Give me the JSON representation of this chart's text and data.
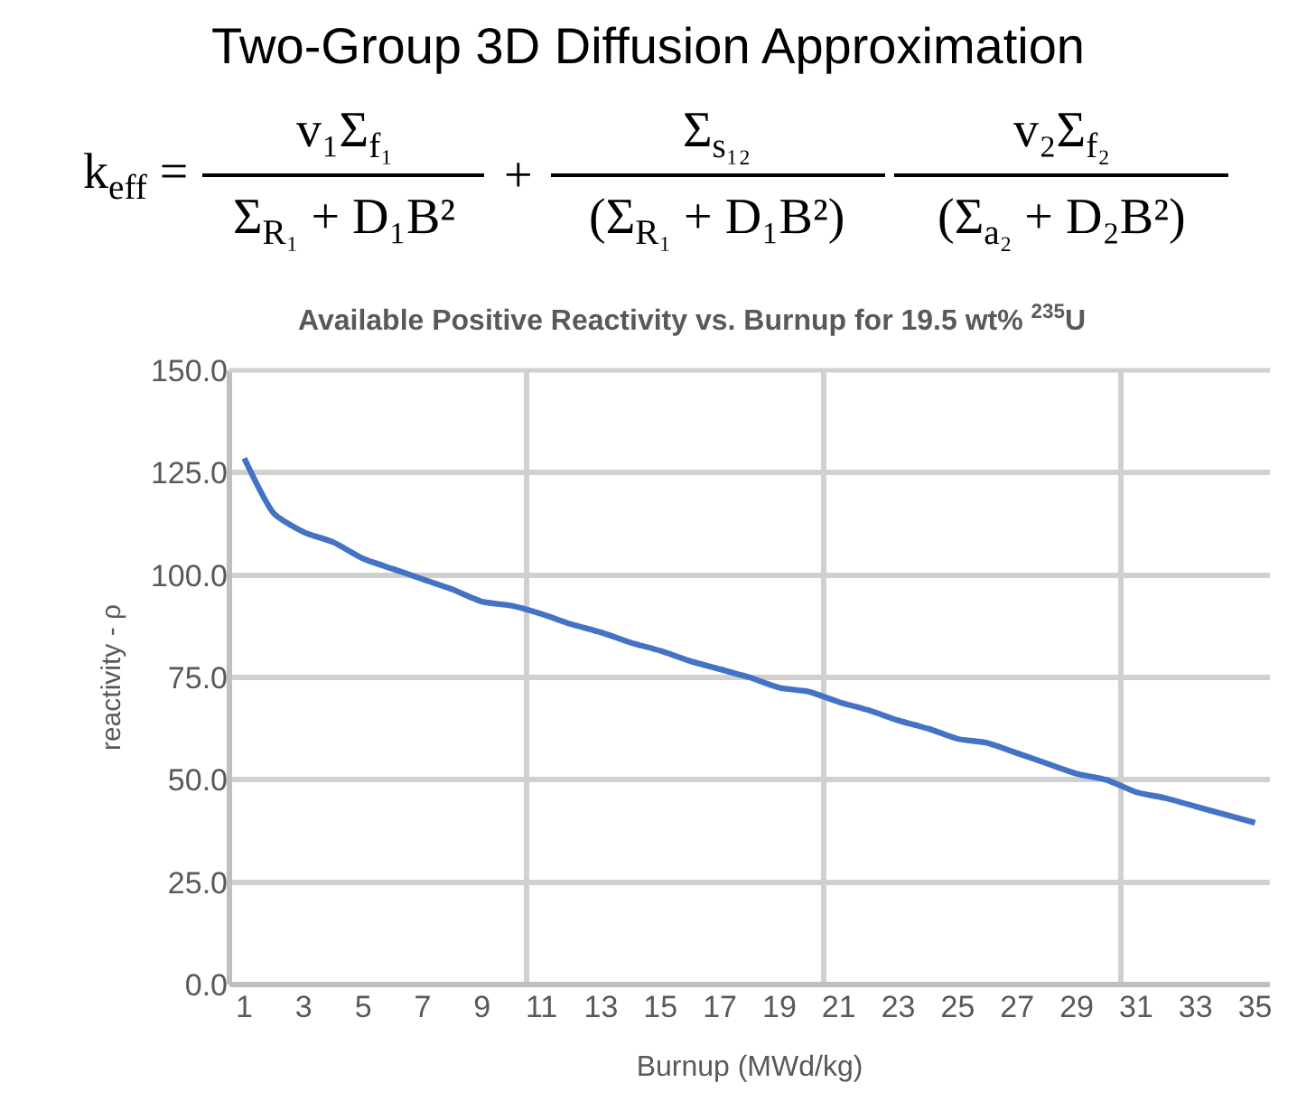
{
  "chart_data": {
    "type": "line",
    "title": "Two-Group 3D Diffusion Approximation",
    "subtitle": "Available Positive Reactivity vs. Burnup for 19.5 wt% $^{235}$U",
    "annotations": [
      "k$_{eff}$ =",
      "v₁Σ$_{f₁}$",
      "Σ$_{R₁}$ + D₁B²",
      "+",
      "Σ$_{s₁₂}$",
      "(Σ$_{R₁}$ + D₁B²)",
      "v₂Σ$_{f₂}$",
      "(Σ$_{a₂}$ + D₂B²)"
    ],
    "xlabel": "Burnup (MWd/kg)",
    "ylabel": "reactivity - ρ",
    "x": [
      1,
      2,
      3,
      4,
      5,
      6,
      7,
      8,
      9,
      10,
      11,
      12,
      13,
      14,
      15,
      16,
      17,
      18,
      19,
      20,
      21,
      22,
      23,
      24,
      25,
      26,
      27,
      28,
      29,
      30,
      31,
      32,
      33,
      34,
      35
    ],
    "series": [
      {
        "color": "#4472c4",
        "values": [
          128.5,
          115,
          110.5,
          108,
          104,
          101.5,
          99,
          96.5,
          93.5,
          92.5,
          90.5,
          88,
          86,
          83.5,
          81.5,
          79,
          77,
          75,
          72.5,
          71.5,
          69,
          67,
          64.5,
          62.5,
          60,
          59,
          56.5,
          54,
          51.5,
          50,
          47,
          45.5,
          43.5,
          41.5,
          39.5
        ]
      }
    ],
    "xlim": [
      0.5,
      35.5
    ],
    "xticks": [
      1,
      3,
      5,
      7,
      9,
      11,
      13,
      15,
      17,
      19,
      21,
      23,
      25,
      27,
      29,
      31,
      33,
      35,
      {
        "value": 10.5,
        "label": null
      },
      {
        "value": 20.5,
        "label": null
      },
      {
        "value": 30.5,
        "label": null
      }
    ],
    "ylim": [
      0,
      150
    ],
    "yticks": [
      {
        "value": 0,
        "label": "0.0"
      },
      {
        "value": 25,
        "label": "25.0"
      },
      {
        "value": 50,
        "label": "50.0"
      },
      {
        "value": 75,
        "label": "75.0"
      },
      {
        "value": 100,
        "label": "100.0"
      },
      {
        "value": 125,
        "label": "125.0"
      },
      {
        "value": 150,
        "label": "150.0"
      }
    ],
    "grid": true,
    "marker": "none",
    "line_style": "solid"
  }
}
